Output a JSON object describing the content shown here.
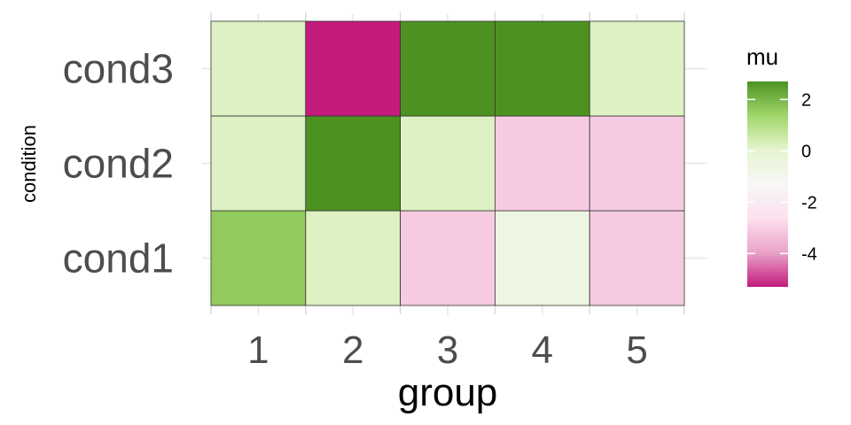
{
  "chart_data": {
    "type": "heatmap",
    "xlabel": "group",
    "ylabel": "condition",
    "x_categories": [
      "1",
      "2",
      "3",
      "4",
      "5"
    ],
    "y_categories": [
      "cond1",
      "cond2",
      "cond3"
    ],
    "grid": true,
    "values": [
      {
        "x": "1",
        "y": "cond1",
        "value": 1.6
      },
      {
        "x": "2",
        "y": "cond1",
        "value": 0.2
      },
      {
        "x": "3",
        "y": "cond1",
        "value": -3.1
      },
      {
        "x": "4",
        "y": "cond1",
        "value": -0.5
      },
      {
        "x": "5",
        "y": "cond1",
        "value": -3.1
      },
      {
        "x": "1",
        "y": "cond2",
        "value": 0.2
      },
      {
        "x": "2",
        "y": "cond2",
        "value": 2.7
      },
      {
        "x": "3",
        "y": "cond2",
        "value": 0.2
      },
      {
        "x": "4",
        "y": "cond2",
        "value": -3.1
      },
      {
        "x": "5",
        "y": "cond2",
        "value": -3.1
      },
      {
        "x": "1",
        "y": "cond3",
        "value": 0.2
      },
      {
        "x": "2",
        "y": "cond3",
        "value": -5.3
      },
      {
        "x": "3",
        "y": "cond3",
        "value": 2.7
      },
      {
        "x": "4",
        "y": "cond3",
        "value": 2.7
      },
      {
        "x": "5",
        "y": "cond3",
        "value": 0.2
      }
    ],
    "legend": {
      "title": "mu",
      "placement": "right",
      "min": -5.3,
      "max": 2.7,
      "ticks": [
        2,
        0,
        -2,
        -4
      ],
      "tick_labels": [
        "2",
        "0",
        "-2",
        "-4"
      ],
      "colors": [
        "#c51b7d",
        "#e9a3c9",
        "#fde0ef",
        "#f7f7f7",
        "#e6f5d0",
        "#a1d76a",
        "#4d9221"
      ]
    }
  }
}
